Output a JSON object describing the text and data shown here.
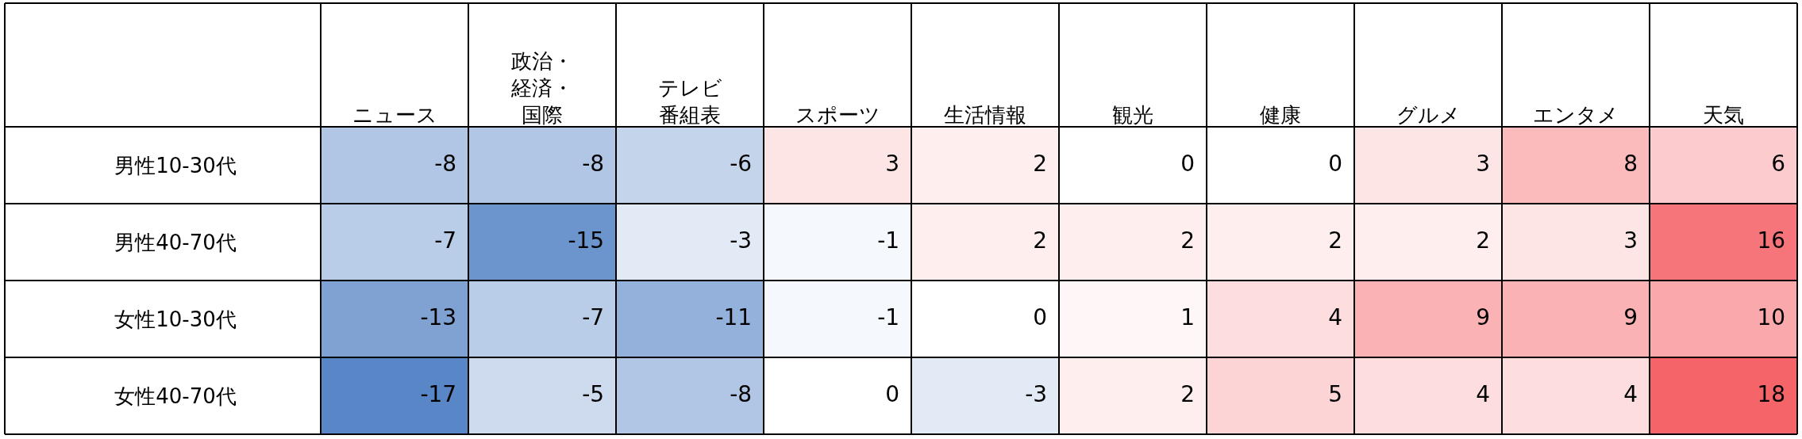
{
  "chart_data": {
    "type": "heatmap",
    "data_labels": true,
    "grid": true,
    "categories": [
      "ニュース",
      "政治・経済・国際",
      "テレビ番組表",
      "スポーツ",
      "生活情報",
      "観光",
      "健康",
      "グルメ",
      "エンタメ",
      "天気"
    ],
    "y_categories": [
      "男性10-30代",
      "男性40-70代",
      "女性10-30代",
      "女性40-70代"
    ],
    "cells": [
      [
        -8,
        -8,
        -6,
        3,
        2,
        0,
        0,
        3,
        8,
        6
      ],
      [
        -7,
        -15,
        -3,
        -1,
        2,
        2,
        2,
        2,
        3,
        16
      ],
      [
        -13,
        -7,
        -11,
        -1,
        0,
        1,
        4,
        9,
        9,
        10
      ],
      [
        -17,
        -5,
        -8,
        0,
        -3,
        2,
        5,
        4,
        4,
        18
      ]
    ]
  }
}
